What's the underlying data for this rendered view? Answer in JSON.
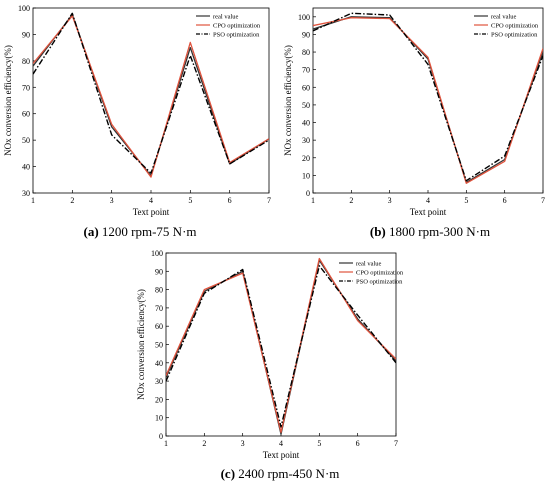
{
  "chart_data": [
    {
      "type": "line",
      "caption_letter": "(a)",
      "caption_text": " 1200 rpm-75 N·m",
      "xlabel": "Text point",
      "ylabel": "NOx conversion efficiency(%)",
      "x": [
        1,
        2,
        3,
        4,
        5,
        6,
        7
      ],
      "xlim": [
        1,
        7
      ],
      "ylim": [
        30,
        100
      ],
      "yticks": [
        30,
        40,
        50,
        60,
        70,
        80,
        90,
        100
      ],
      "legend_position": "top-right",
      "series": [
        {
          "name": "real value",
          "color": "#333333",
          "dash": "solid",
          "values": [
            78,
            97.5,
            55,
            36.5,
            85,
            41,
            50.5
          ]
        },
        {
          "name": "CPO optimization",
          "color": "#e0533d",
          "dash": "solid",
          "values": [
            79,
            97,
            56,
            36,
            87,
            41.5,
            50.5
          ]
        },
        {
          "name": "PSO optimization",
          "color": "#000000",
          "dash": "dashdot",
          "values": [
            75,
            98,
            52,
            37.5,
            82,
            41,
            50
          ]
        }
      ]
    },
    {
      "type": "line",
      "caption_letter": "(b)",
      "caption_text": " 1800 rpm-300 N·m",
      "xlabel": "Text point",
      "ylabel": "NOx conversion efficiency(%)",
      "x": [
        1,
        2,
        3,
        4,
        5,
        6,
        7
      ],
      "xlim": [
        1,
        7
      ],
      "ylim": [
        0,
        105
      ],
      "yticks": [
        0,
        10,
        20,
        30,
        40,
        50,
        60,
        70,
        80,
        90,
        100
      ],
      "legend_position": "top-right",
      "series": [
        {
          "name": "real value",
          "color": "#333333",
          "dash": "solid",
          "values": [
            93,
            100,
            99.5,
            76,
            6,
            19,
            80
          ]
        },
        {
          "name": "CPO optimization",
          "color": "#e0533d",
          "dash": "solid",
          "values": [
            95,
            99.5,
            99,
            77,
            5.5,
            18,
            82
          ]
        },
        {
          "name": "PSO optimization",
          "color": "#000000",
          "dash": "dashdot",
          "values": [
            92,
            102,
            101,
            73,
            7,
            21,
            78
          ]
        }
      ]
    },
    {
      "type": "line",
      "caption_letter": "(c)",
      "caption_text": " 2400 rpm-450 N·m",
      "xlabel": "Text point",
      "ylabel": "NOx conversion efficiency(%)",
      "x": [
        1,
        2,
        3,
        4,
        5,
        6,
        7
      ],
      "xlim": [
        1,
        7
      ],
      "ylim": [
        0,
        100
      ],
      "yticks": [
        0,
        10,
        20,
        30,
        40,
        50,
        60,
        70,
        80,
        90,
        100
      ],
      "legend_position": "top-right",
      "series": [
        {
          "name": "real value",
          "color": "#333333",
          "dash": "solid",
          "values": [
            32,
            79,
            90,
            1,
            96,
            64,
            41
          ]
        },
        {
          "name": "CPO optimization",
          "color": "#e0533d",
          "dash": "solid",
          "values": [
            33,
            80,
            89,
            2,
            97,
            63,
            42
          ]
        },
        {
          "name": "PSO optimization",
          "color": "#000000",
          "dash": "dashdot",
          "values": [
            30,
            78,
            91,
            5,
            93,
            66,
            40
          ]
        }
      ]
    }
  ]
}
